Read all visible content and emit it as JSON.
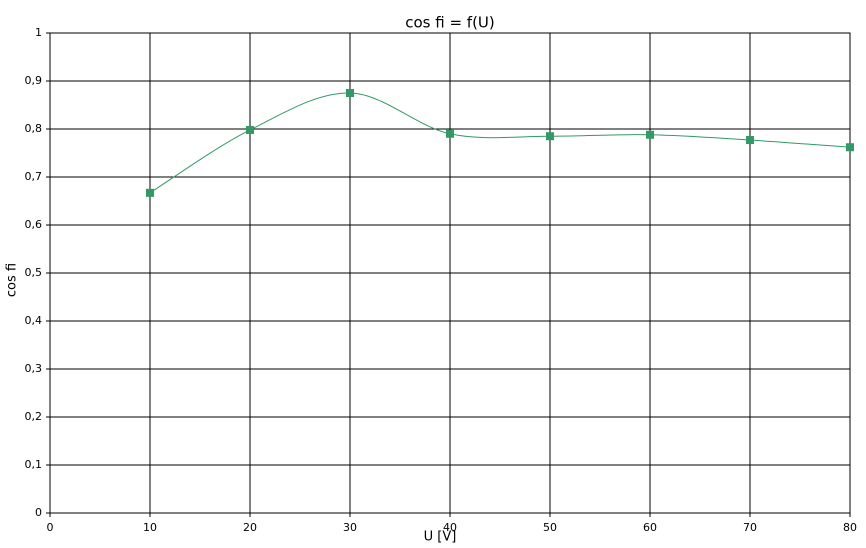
{
  "chart_data": {
    "type": "line",
    "title": "cos fi = f(U)",
    "x_label": "U [V]",
    "y_label": "cos fi",
    "x": [
      10,
      20,
      30,
      40,
      50,
      60,
      70,
      80
    ],
    "series": [
      {
        "name": "cos fi",
        "color": "#339966",
        "values": [
          0.667,
          0.798,
          0.875,
          0.79,
          0.785,
          0.788,
          0.777,
          0.762
        ]
      }
    ],
    "xlim": [
      0,
      80
    ],
    "xticks": [
      0,
      10,
      20,
      30,
      40,
      50,
      60,
      70,
      80
    ],
    "ylim": [
      0,
      1
    ],
    "yticks": [
      0,
      {
        "value": 0.1,
        "label": "0,1"
      },
      {
        "value": 0.2,
        "label": "0,2"
      },
      {
        "value": 0.3,
        "label": "0,3"
      },
      {
        "value": 0.4,
        "label": "0,4"
      },
      {
        "value": 0.5,
        "label": "0,5"
      },
      {
        "value": 0.6,
        "label": "0,6"
      },
      {
        "value": 0.7,
        "label": "0,7"
      },
      {
        "value": 0.8,
        "label": "0,8"
      },
      {
        "value": 0.9,
        "label": "0,9"
      },
      1
    ],
    "grid": true,
    "smooth": true
  }
}
